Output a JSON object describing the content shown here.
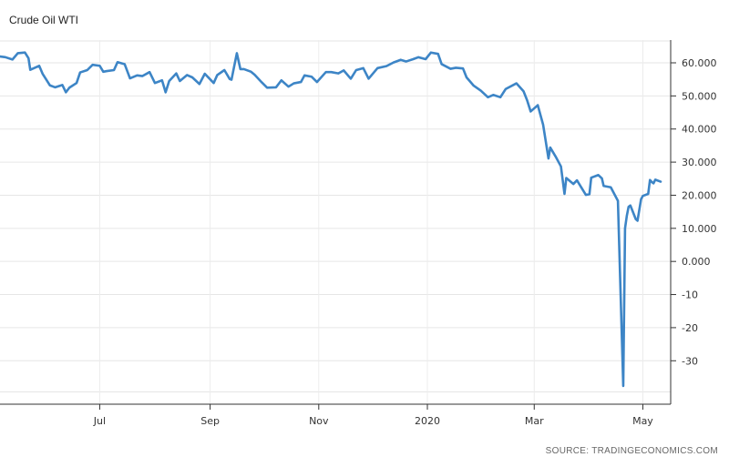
{
  "chart_data": {
    "type": "line",
    "title": "Crude Oil WTI",
    "source": "SOURCE: TRADINGECONOMICS.COM",
    "xlabel": "",
    "ylabel": "",
    "x_ticks": [
      "Jul",
      "Sep",
      "Nov",
      "2020",
      "Mar",
      "May"
    ],
    "y_ticks": [
      "60.000",
      "50.000",
      "40.000",
      "30.000",
      "20.000",
      "10.000",
      "0.000",
      "-10",
      "-20",
      "-30"
    ],
    "y_tick_values": [
      60,
      50,
      40,
      30,
      20,
      10,
      0,
      -10,
      -20,
      -30
    ],
    "ylim": [
      -40,
      70
    ],
    "x_range": [
      "2019-05-06",
      "2020-05-11"
    ],
    "grid": true,
    "color": "#3d85c6",
    "series": [
      {
        "points": [
          [
            "2019-05-06",
            61.9
          ],
          [
            "2019-05-09",
            61.7
          ],
          [
            "2019-05-13",
            61.0
          ],
          [
            "2019-05-16",
            62.9
          ],
          [
            "2019-05-20",
            63.1
          ],
          [
            "2019-05-22",
            61.4
          ],
          [
            "2019-05-23",
            57.9
          ],
          [
            "2019-05-28",
            59.1
          ],
          [
            "2019-05-30",
            56.6
          ],
          [
            "2019-06-03",
            53.2
          ],
          [
            "2019-06-06",
            52.6
          ],
          [
            "2019-06-10",
            53.3
          ],
          [
            "2019-06-12",
            51.1
          ],
          [
            "2019-06-14",
            52.5
          ],
          [
            "2019-06-18",
            53.9
          ],
          [
            "2019-06-20",
            57.1
          ],
          [
            "2019-06-24",
            57.8
          ],
          [
            "2019-06-27",
            59.4
          ],
          [
            "2019-07-01",
            59.1
          ],
          [
            "2019-07-03",
            57.3
          ],
          [
            "2019-07-05",
            57.5
          ],
          [
            "2019-07-09",
            57.8
          ],
          [
            "2019-07-11",
            60.2
          ],
          [
            "2019-07-15",
            59.6
          ],
          [
            "2019-07-18",
            55.3
          ],
          [
            "2019-07-22",
            56.2
          ],
          [
            "2019-07-25",
            56.0
          ],
          [
            "2019-07-29",
            57.2
          ],
          [
            "2019-08-01",
            53.9
          ],
          [
            "2019-08-05",
            54.7
          ],
          [
            "2019-08-07",
            51.1
          ],
          [
            "2019-08-09",
            54.5
          ],
          [
            "2019-08-13",
            56.8
          ],
          [
            "2019-08-15",
            54.5
          ],
          [
            "2019-08-19",
            56.3
          ],
          [
            "2019-08-22",
            55.6
          ],
          [
            "2019-08-26",
            53.6
          ],
          [
            "2019-08-29",
            56.7
          ],
          [
            "2019-09-03",
            53.9
          ],
          [
            "2019-09-05",
            56.3
          ],
          [
            "2019-09-09",
            57.8
          ],
          [
            "2019-09-12",
            55.1
          ],
          [
            "2019-09-13",
            54.9
          ],
          [
            "2019-09-16",
            62.9
          ],
          [
            "2019-09-18",
            58.1
          ],
          [
            "2019-09-20",
            58.1
          ],
          [
            "2019-09-24",
            57.3
          ],
          [
            "2019-09-26",
            56.4
          ],
          [
            "2019-09-30",
            54.1
          ],
          [
            "2019-10-03",
            52.5
          ],
          [
            "2019-10-08",
            52.6
          ],
          [
            "2019-10-11",
            54.7
          ],
          [
            "2019-10-15",
            52.8
          ],
          [
            "2019-10-18",
            53.8
          ],
          [
            "2019-10-22",
            54.2
          ],
          [
            "2019-10-24",
            56.2
          ],
          [
            "2019-10-28",
            55.8
          ],
          [
            "2019-10-31",
            54.2
          ],
          [
            "2019-11-05",
            57.2
          ],
          [
            "2019-11-08",
            57.2
          ],
          [
            "2019-11-12",
            56.8
          ],
          [
            "2019-11-15",
            57.7
          ],
          [
            "2019-11-19",
            55.2
          ],
          [
            "2019-11-22",
            57.8
          ],
          [
            "2019-11-26",
            58.4
          ],
          [
            "2019-11-29",
            55.2
          ],
          [
            "2019-12-04",
            58.4
          ],
          [
            "2019-12-09",
            59.0
          ],
          [
            "2019-12-13",
            60.1
          ],
          [
            "2019-12-17",
            60.9
          ],
          [
            "2019-12-20",
            60.4
          ],
          [
            "2019-12-24",
            61.1
          ],
          [
            "2019-12-27",
            61.7
          ],
          [
            "2019-12-31",
            61.1
          ],
          [
            "2020-01-03",
            63.1
          ],
          [
            "2020-01-07",
            62.7
          ],
          [
            "2020-01-09",
            59.6
          ],
          [
            "2020-01-14",
            58.2
          ],
          [
            "2020-01-17",
            58.5
          ],
          [
            "2020-01-21",
            58.3
          ],
          [
            "2020-01-23",
            55.6
          ],
          [
            "2020-01-27",
            53.1
          ],
          [
            "2020-01-31",
            51.6
          ],
          [
            "2020-02-04",
            49.6
          ],
          [
            "2020-02-07",
            50.3
          ],
          [
            "2020-02-11",
            49.6
          ],
          [
            "2020-02-14",
            52.1
          ],
          [
            "2020-02-20",
            53.8
          ],
          [
            "2020-02-24",
            51.4
          ],
          [
            "2020-02-26",
            48.7
          ],
          [
            "2020-02-28",
            45.3
          ],
          [
            "2020-03-03",
            47.2
          ],
          [
            "2020-03-06",
            41.3
          ],
          [
            "2020-03-09",
            31.1
          ],
          [
            "2020-03-10",
            34.4
          ],
          [
            "2020-03-13",
            31.7
          ],
          [
            "2020-03-16",
            28.7
          ],
          [
            "2020-03-18",
            20.4
          ],
          [
            "2020-03-19",
            25.2
          ],
          [
            "2020-03-23",
            23.4
          ],
          [
            "2020-03-25",
            24.5
          ],
          [
            "2020-03-30",
            20.1
          ],
          [
            "2020-04-01",
            20.3
          ],
          [
            "2020-04-02",
            25.3
          ],
          [
            "2020-04-06",
            26.1
          ],
          [
            "2020-04-08",
            25.1
          ],
          [
            "2020-04-09",
            22.8
          ],
          [
            "2020-04-13",
            22.4
          ],
          [
            "2020-04-17",
            18.3
          ],
          [
            "2020-04-20",
            -37.6
          ],
          [
            "2020-04-21",
            10.0
          ],
          [
            "2020-04-22",
            13.8
          ],
          [
            "2020-04-23",
            16.5
          ],
          [
            "2020-04-24",
            16.9
          ],
          [
            "2020-04-27",
            12.8
          ],
          [
            "2020-04-28",
            12.3
          ],
          [
            "2020-04-30",
            18.8
          ],
          [
            "2020-05-01",
            19.8
          ],
          [
            "2020-05-04",
            20.4
          ],
          [
            "2020-05-05",
            24.6
          ],
          [
            "2020-05-06",
            24.0
          ],
          [
            "2020-05-07",
            23.6
          ],
          [
            "2020-05-08",
            24.7
          ],
          [
            "2020-05-11",
            24.1
          ]
        ]
      }
    ]
  }
}
